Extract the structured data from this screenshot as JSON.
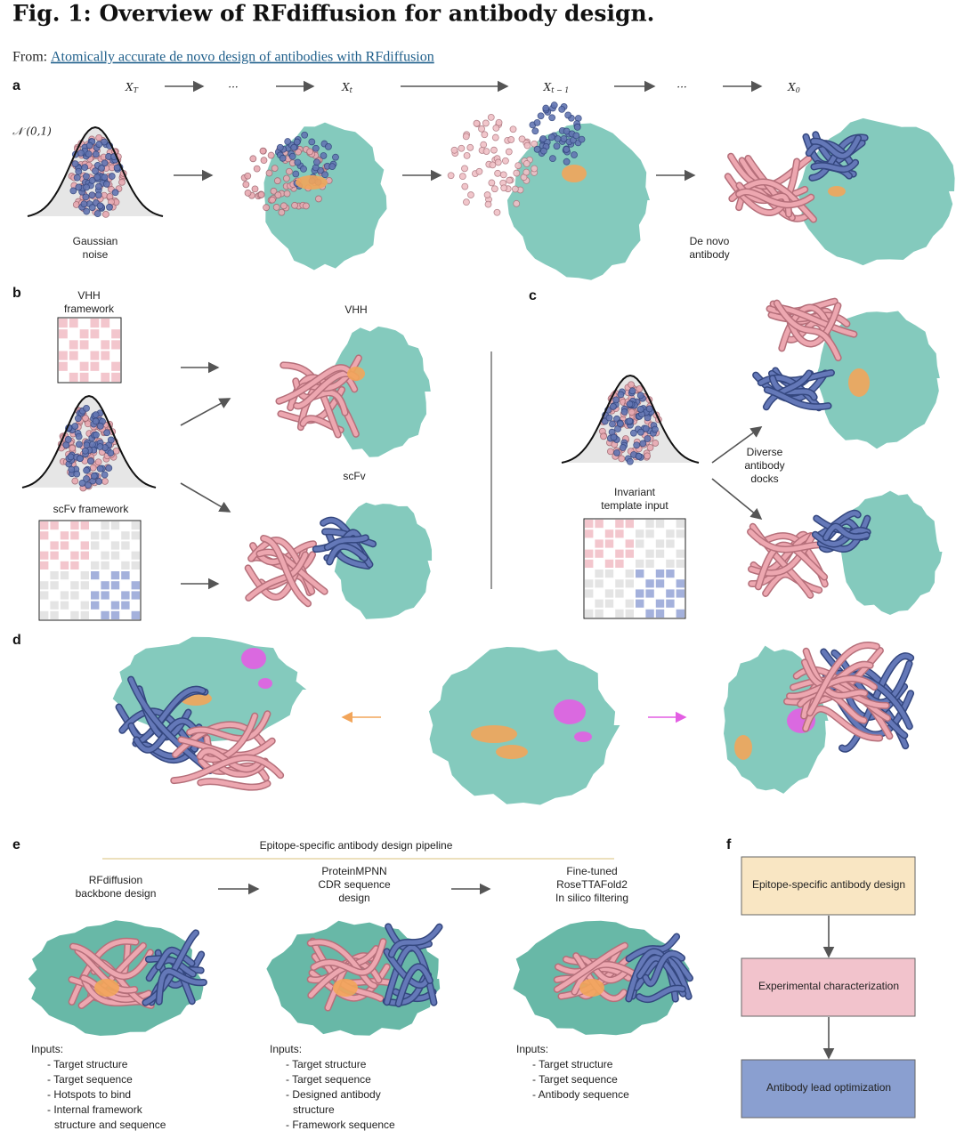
{
  "header": {
    "title": "Fig. 1: Overview of RFdiffusion for antibody design.",
    "from_label": "From:",
    "from_link": "Atomically accurate de novo design of antibodies with RFdiffusion"
  },
  "panel_a": {
    "label": "a",
    "steps": [
      {
        "main": "X",
        "sub": "T"
      },
      {
        "main": "···"
      },
      {
        "main": "X",
        "sub": "t"
      },
      {
        "main": "X",
        "sub": "t − 1"
      },
      {
        "main": "···"
      },
      {
        "main": "X",
        "sub": "0"
      }
    ],
    "noise": "𝒩 (0,1)",
    "start_label": [
      "Gaussian",
      "noise"
    ],
    "end_label": [
      "De novo",
      "antibody"
    ]
  },
  "panel_b": {
    "label": "b",
    "vhh_framework": [
      "VHH",
      "framework"
    ],
    "scfv_framework": "scFv framework",
    "vhh": "VHH",
    "scfv": "scFv"
  },
  "panel_c": {
    "label": "c",
    "template": [
      "Invariant",
      "template input"
    ],
    "docks": [
      "Diverse",
      "antibody",
      "docks"
    ]
  },
  "panel_d": {
    "label": "d"
  },
  "panel_e": {
    "label": "e",
    "pipeline_title": "Epitope-specific antibody design pipeline",
    "steps": [
      {
        "title": [
          "RFdiffusion",
          "backbone design"
        ],
        "inputs_heading": "Inputs:",
        "inputs": [
          [
            "- Target structure"
          ],
          [
            "- Target sequence"
          ],
          [
            "- Hotspots to bind"
          ],
          [
            "- Internal framework",
            "structure and sequence"
          ]
        ]
      },
      {
        "title": [
          "ProteinMPNN",
          "CDR sequence",
          "design"
        ],
        "inputs_heading": "Inputs:",
        "inputs": [
          [
            "- Target structure"
          ],
          [
            "- Target sequence"
          ],
          [
            "- Designed antibody",
            "structure"
          ],
          [
            "- Framework sequence"
          ]
        ]
      },
      {
        "title": [
          "Fine-tuned",
          "RoseTTAFold2",
          "In silico filtering"
        ],
        "inputs_heading": "Inputs:",
        "inputs": [
          [
            "- Target structure"
          ],
          [
            "- Target sequence"
          ],
          [
            "- Antibody sequence"
          ]
        ]
      }
    ]
  },
  "panel_f": {
    "label": "f",
    "boxes": [
      "Epitope-specific antibody design",
      "Experimental characterization",
      "Antibody lead optimization"
    ]
  }
}
